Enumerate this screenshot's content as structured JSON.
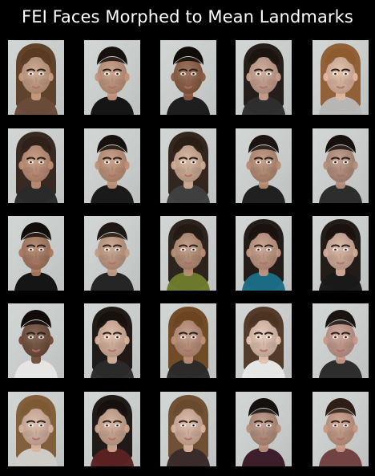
{
  "figure": {
    "title": "FEI Faces Morphed to Mean Landmarks"
  },
  "faces": [
    {
      "row": 1,
      "col": 1,
      "hair": "#5a3b22",
      "skin": "#c79c7f",
      "shirt": "#6a4b3a",
      "style": "long"
    },
    {
      "row": 1,
      "col": 2,
      "hair": "#16110e",
      "skin": "#c39479",
      "shirt": "#111111",
      "style": "short"
    },
    {
      "row": 1,
      "col": 3,
      "hair": "#0f0b09",
      "skin": "#8b5a3f",
      "shirt": "#1b1b1b",
      "style": "short"
    },
    {
      "row": 1,
      "col": 4,
      "hair": "#1b1411",
      "skin": "#c8a08c",
      "shirt": "#2f2f2f",
      "style": "long"
    },
    {
      "row": 1,
      "col": 5,
      "hair": "#8e5b2f",
      "skin": "#e0b89f",
      "shirt": "#b8b8b8",
      "style": "long"
    },
    {
      "row": 2,
      "col": 1,
      "hair": "#2f2119",
      "skin": "#bf8d72",
      "shirt": "#2b2b2b",
      "style": "long"
    },
    {
      "row": 2,
      "col": 2,
      "hair": "#16110e",
      "skin": "#c09076",
      "shirt": "#161616",
      "style": "short"
    },
    {
      "row": 2,
      "col": 3,
      "hair": "#2a1e15",
      "skin": "#d1ad92",
      "shirt": "#404040",
      "style": "long"
    },
    {
      "row": 2,
      "col": 4,
      "hair": "#1b1411",
      "skin": "#b88c73",
      "shirt": "#1d1d1d",
      "style": "short"
    },
    {
      "row": 2,
      "col": 5,
      "hair": "#17110e",
      "skin": "#b58e7a",
      "shirt": "#2a2a2a",
      "style": "short"
    },
    {
      "row": 3,
      "col": 1,
      "hair": "#120d0b",
      "skin": "#a9775c",
      "shirt": "#111111",
      "style": "short"
    },
    {
      "row": 3,
      "col": 2,
      "hair": "#1f1713",
      "skin": "#c39a82",
      "shirt": "#222222",
      "style": "short"
    },
    {
      "row": 3,
      "col": 3,
      "hair": "#241a14",
      "skin": "#b88d74",
      "shirt": "#6d7b2e",
      "style": "long"
    },
    {
      "row": 3,
      "col": 4,
      "hair": "#19120f",
      "skin": "#c39680",
      "shirt": "#1d6d88",
      "style": "long"
    },
    {
      "row": 3,
      "col": 5,
      "hair": "#1a120f",
      "skin": "#d4ac98",
      "shirt": "#1a1a1a",
      "style": "long"
    },
    {
      "row": 4,
      "col": 1,
      "hair": "#100b09",
      "skin": "#6f4a36",
      "shirt": "#e8e6e3",
      "style": "short"
    },
    {
      "row": 4,
      "col": 2,
      "hair": "#17110e",
      "skin": "#d9b29b",
      "shirt": "#2b2b2b",
      "style": "long"
    },
    {
      "row": 4,
      "col": 3,
      "hair": "#6d4420",
      "skin": "#bd8e77",
      "shirt": "#2b2b2b",
      "style": "long"
    },
    {
      "row": 4,
      "col": 4,
      "hair": "#4d3422",
      "skin": "#e2c0ad",
      "shirt": "#e9e9e9",
      "style": "long"
    },
    {
      "row": 4,
      "col": 5,
      "hair": "#1a1410",
      "skin": "#c6988a",
      "shirt": "#2a2a2a",
      "style": "short"
    },
    {
      "row": 5,
      "col": 1,
      "hair": "#7d5a33",
      "skin": "#d7b39f",
      "shirt": "#d0cdca",
      "style": "long"
    },
    {
      "row": 5,
      "col": 2,
      "hair": "#16110e",
      "skin": "#cfa58f",
      "shirt": "#5b2222",
      "style": "long"
    },
    {
      "row": 5,
      "col": 3,
      "hair": "#6a4a2c",
      "skin": "#d8b29d",
      "shirt": "#3a2b2b",
      "style": "long"
    },
    {
      "row": 5,
      "col": 4,
      "hair": "#15100d",
      "skin": "#b88f7b",
      "shirt": "#3a1b2a",
      "style": "short"
    },
    {
      "row": 5,
      "col": 5,
      "hair": "#2e1f16",
      "skin": "#c79883",
      "shirt": "#6f4040",
      "style": "short"
    }
  ]
}
